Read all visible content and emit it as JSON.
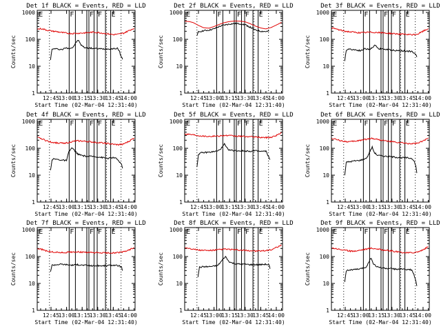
{
  "colors": {
    "events": "#000000",
    "lld": "#e00000",
    "background": "#ffffff",
    "axis": "#000000"
  },
  "common": {
    "xlabel": "Start Time (02-Mar-04 12:31:40)",
    "ylabel": "Counts/sec",
    "y_ticks": [
      {
        "value": 1,
        "label": "1"
      },
      {
        "value": 10,
        "label": "10"
      },
      {
        "value": 100,
        "label": "100"
      },
      {
        "value": 1000,
        "label": "1000"
      }
    ],
    "x_ticks": [
      {
        "value": 765,
        "label": "12:45"
      },
      {
        "value": 780,
        "label": "13:00"
      },
      {
        "value": 795,
        "label": "13:15"
      },
      {
        "value": 810,
        "label": "13:30"
      },
      {
        "value": 825,
        "label": "13:45"
      },
      {
        "value": 840,
        "label": "14:00"
      }
    ],
    "xlim_minutes": [
      751.7,
      846
    ],
    "ylim": [
      1,
      1200
    ],
    "y_scale": "log",
    "dotted_markers": [
      763.5,
      818.5,
      832.5
    ],
    "solid_markers": [
      782.5,
      788.5,
      799.5,
      801.5,
      806.5,
      809.5,
      817.5,
      822.5
    ],
    "region_labels": [
      {
        "text": "E",
        "at": 752.5
      },
      {
        "text": "F",
        "at": 782.5
      },
      {
        "text": "F",
        "at": 801.5
      },
      {
        "text": "F",
        "at": 809.5
      },
      {
        "text": "E",
        "at": 822.5
      }
    ]
  },
  "chart_data": [
    {
      "type": "line",
      "title": "Det 1f BLACK = Events, RED = LLD",
      "xlabel": "Start Time (02-Mar-04 12:31:40)",
      "ylabel": "Counts/sec",
      "y_scale": "log",
      "ylim": [
        1,
        1200
      ],
      "series": [
        {
          "key": "events",
          "x": [
            764.5,
            766,
            768,
            770,
            772,
            776,
            779,
            782,
            786,
            789,
            791,
            794,
            797,
            800,
            805,
            810,
            815,
            820,
            825,
            829,
            831,
            832.5,
            834
          ],
          "y": [
            18,
            42,
            45,
            44,
            43,
            42,
            48,
            46,
            50,
            75,
            95,
            62,
            50,
            48,
            46,
            45,
            44,
            44,
            45,
            46,
            35,
            24,
            18
          ]
        },
        {
          "key": "lld",
          "x": [
            752,
            756,
            760,
            765,
            770,
            775,
            780,
            785,
            790,
            795,
            800,
            805,
            810,
            815,
            820,
            825,
            830,
            835,
            840,
            845
          ],
          "y": [
            240,
            250,
            225,
            205,
            195,
            180,
            170,
            165,
            168,
            172,
            175,
            185,
            180,
            170,
            160,
            150,
            155,
            170,
            210,
            260
          ]
        }
      ]
    },
    {
      "type": "line",
      "title": "Det 2f BLACK = Events, RED = LLD",
      "xlabel": "Start Time (02-Mar-04 12:31:40)",
      "ylabel": "Counts/sec",
      "y_scale": "log",
      "ylim": [
        1,
        1200
      ],
      "series": [
        {
          "key": "events",
          "x": [
            763.5,
            765,
            770,
            775,
            780,
            785,
            790,
            795,
            800,
            805,
            810,
            815,
            820,
            825,
            830,
            833
          ],
          "y": [
            130,
            190,
            210,
            220,
            245,
            300,
            340,
            370,
            385,
            380,
            350,
            280,
            220,
            200,
            195,
            200
          ]
        },
        {
          "key": "lld",
          "x": [
            752,
            756,
            760,
            765,
            770,
            775,
            780,
            785,
            790,
            795,
            800,
            805,
            810,
            815,
            820,
            825,
            830,
            835,
            840,
            845
          ],
          "y": [
            470,
            460,
            420,
            330,
            270,
            260,
            300,
            360,
            420,
            460,
            480,
            475,
            450,
            380,
            310,
            265,
            245,
            275,
            340,
            430
          ]
        }
      ]
    },
    {
      "type": "line",
      "title": "Det 3f BLACK = Events, RED = LLD",
      "xlabel": "Start Time (02-Mar-04 12:31:40)",
      "ylabel": "Counts/sec",
      "y_scale": "log",
      "ylim": [
        1,
        1200
      ],
      "series": [
        {
          "key": "events",
          "x": [
            764.5,
            766,
            768,
            772,
            776,
            780,
            784,
            788,
            791,
            794,
            797,
            800,
            805,
            810,
            815,
            820,
            825,
            829,
            831,
            833,
            834
          ],
          "y": [
            15,
            40,
            44,
            42,
            40,
            38,
            45,
            42,
            48,
            62,
            45,
            44,
            42,
            40,
            38,
            38,
            36,
            36,
            30,
            28,
            22
          ]
        },
        {
          "key": "lld",
          "x": [
            752,
            756,
            760,
            765,
            770,
            775,
            780,
            785,
            790,
            795,
            800,
            805,
            810,
            815,
            820,
            825,
            830,
            835,
            840,
            845
          ],
          "y": [
            260,
            245,
            220,
            200,
            190,
            182,
            175,
            180,
            185,
            180,
            175,
            170,
            165,
            160,
            155,
            150,
            148,
            158,
            200,
            250
          ]
        }
      ]
    },
    {
      "type": "line",
      "title": "Det 4f BLACK = Events, RED = LLD",
      "xlabel": "Start Time (02-Mar-04 12:31:40)",
      "ylabel": "Counts/sec",
      "y_scale": "log",
      "ylim": [
        1,
        1200
      ],
      "series": [
        {
          "key": "events",
          "x": [
            764.5,
            766,
            768,
            772,
            776,
            780,
            782,
            785,
            788,
            791,
            794,
            797,
            800,
            805,
            810,
            815,
            820,
            825,
            829,
            831,
            833,
            834
          ],
          "y": [
            15,
            38,
            40,
            38,
            36,
            35,
            70,
            105,
            80,
            60,
            55,
            52,
            50,
            50,
            48,
            45,
            42,
            45,
            40,
            30,
            25,
            18
          ]
        },
        {
          "key": "lld",
          "x": [
            752,
            756,
            760,
            765,
            770,
            775,
            780,
            785,
            790,
            795,
            800,
            805,
            810,
            815,
            820,
            825,
            830,
            835,
            840,
            845
          ],
          "y": [
            250,
            230,
            195,
            170,
            160,
            155,
            160,
            175,
            190,
            185,
            178,
            170,
            165,
            160,
            150,
            140,
            135,
            145,
            180,
            240
          ]
        }
      ]
    },
    {
      "type": "line",
      "title": "Det 5f BLACK = Events, RED = LLD",
      "xlabel": "Start Time (02-Mar-04 12:31:40)",
      "ylabel": "Counts/sec",
      "y_scale": "log",
      "ylim": [
        1,
        1200
      ],
      "series": [
        {
          "key": "events",
          "x": [
            763.5,
            765,
            768,
            772,
            776,
            780,
            784,
            788,
            790,
            792,
            795,
            800,
            805,
            810,
            815,
            820,
            825,
            830,
            832,
            834
          ],
          "y": [
            20,
            60,
            68,
            70,
            72,
            75,
            80,
            110,
            145,
            105,
            85,
            82,
            80,
            80,
            78,
            80,
            76,
            78,
            55,
            38
          ]
        },
        {
          "key": "lld",
          "x": [
            752,
            756,
            760,
            765,
            770,
            775,
            780,
            785,
            790,
            795,
            800,
            805,
            810,
            815,
            820,
            825,
            830,
            835,
            840,
            845
          ],
          "y": [
            340,
            335,
            320,
            300,
            285,
            280,
            282,
            290,
            300,
            295,
            285,
            280,
            275,
            270,
            262,
            255,
            250,
            258,
            300,
            380
          ]
        }
      ]
    },
    {
      "type": "line",
      "title": "Det 6f BLACK = Events, RED = LLD",
      "xlabel": "Start Time (02-Mar-04 12:31:40)",
      "ylabel": "Counts/sec",
      "y_scale": "log",
      "ylim": [
        1,
        1200
      ],
      "series": [
        {
          "key": "events",
          "x": [
            764.5,
            766,
            770,
            774,
            778,
            782,
            786,
            789,
            791,
            793,
            796,
            800,
            805,
            810,
            815,
            820,
            825,
            829,
            831,
            833,
            834
          ],
          "y": [
            10,
            30,
            32,
            34,
            35,
            38,
            45,
            80,
            110,
            70,
            55,
            52,
            50,
            48,
            46,
            45,
            44,
            42,
            36,
            22,
            12
          ]
        },
        {
          "key": "lld",
          "x": [
            752,
            756,
            760,
            765,
            770,
            775,
            780,
            785,
            790,
            795,
            800,
            805,
            810,
            815,
            820,
            825,
            830,
            835,
            840,
            845
          ],
          "y": [
            230,
            215,
            195,
            180,
            175,
            185,
            200,
            215,
            235,
            220,
            200,
            185,
            175,
            165,
            158,
            150,
            148,
            155,
            185,
            240
          ]
        }
      ]
    },
    {
      "type": "line",
      "title": "Det 7f BLACK = Events, RED = LLD",
      "xlabel": "Start Time (02-Mar-04 12:31:40)",
      "ylabel": "Counts/sec",
      "y_scale": "log",
      "ylim": [
        1,
        1200
      ],
      "series": [
        {
          "key": "events",
          "x": [
            764.5,
            766,
            770,
            775,
            780,
            785,
            790,
            795,
            800,
            805,
            810,
            815,
            820,
            825,
            830,
            833,
            834
          ],
          "y": [
            28,
            48,
            50,
            52,
            50,
            48,
            50,
            48,
            47,
            45,
            46,
            45,
            47,
            48,
            46,
            40,
            30
          ]
        },
        {
          "key": "lld",
          "x": [
            752,
            756,
            760,
            765,
            770,
            775,
            780,
            785,
            790,
            795,
            800,
            805,
            810,
            815,
            820,
            825,
            830,
            835,
            840,
            845
          ],
          "y": [
            200,
            185,
            165,
            150,
            145,
            140,
            142,
            148,
            150,
            145,
            142,
            140,
            138,
            137,
            136,
            138,
            140,
            150,
            175,
            220
          ]
        }
      ]
    },
    {
      "type": "line",
      "title": "Det 8f BLACK = Events, RED = LLD",
      "xlabel": "Start Time (02-Mar-04 12:31:40)",
      "ylabel": "Counts/sec",
      "y_scale": "log",
      "ylim": [
        1,
        1200
      ],
      "series": [
        {
          "key": "events",
          "x": [
            764.5,
            766,
            770,
            775,
            780,
            784,
            788,
            791,
            794,
            797,
            800,
            805,
            810,
            815,
            820,
            825,
            830,
            833,
            834
          ],
          "y": [
            18,
            40,
            42,
            42,
            44,
            48,
            75,
            100,
            68,
            58,
            55,
            52,
            52,
            50,
            50,
            50,
            52,
            48,
            35
          ]
        },
        {
          "key": "lld",
          "x": [
            752,
            756,
            760,
            765,
            770,
            775,
            780,
            785,
            790,
            795,
            800,
            805,
            810,
            815,
            820,
            825,
            830,
            835,
            840,
            845
          ],
          "y": [
            215,
            205,
            190,
            175,
            170,
            168,
            172,
            180,
            190,
            185,
            178,
            172,
            168,
            165,
            162,
            160,
            165,
            180,
            215,
            260
          ]
        }
      ]
    },
    {
      "type": "line",
      "title": "Det 9f BLACK = Events, RED = LLD",
      "xlabel": "Start Time (02-Mar-04 12:31:40)",
      "ylabel": "Counts/sec",
      "y_scale": "log",
      "ylim": [
        1,
        1200
      ],
      "series": [
        {
          "key": "events",
          "x": [
            764.5,
            766,
            770,
            775,
            780,
            785,
            788,
            790,
            792,
            795,
            800,
            805,
            810,
            815,
            820,
            825,
            829,
            831,
            833,
            834
          ],
          "y": [
            12,
            30,
            32,
            33,
            35,
            40,
            65,
            90,
            55,
            42,
            38,
            36,
            35,
            34,
            34,
            33,
            32,
            22,
            12,
            8
          ]
        },
        {
          "key": "lld",
          "x": [
            752,
            756,
            760,
            765,
            770,
            775,
            780,
            785,
            790,
            795,
            800,
            805,
            810,
            815,
            820,
            825,
            830,
            835,
            840,
            845
          ],
          "y": [
            210,
            200,
            185,
            170,
            160,
            162,
            175,
            190,
            205,
            195,
            180,
            170,
            160,
            150,
            142,
            138,
            140,
            150,
            180,
            230
          ]
        }
      ]
    }
  ]
}
